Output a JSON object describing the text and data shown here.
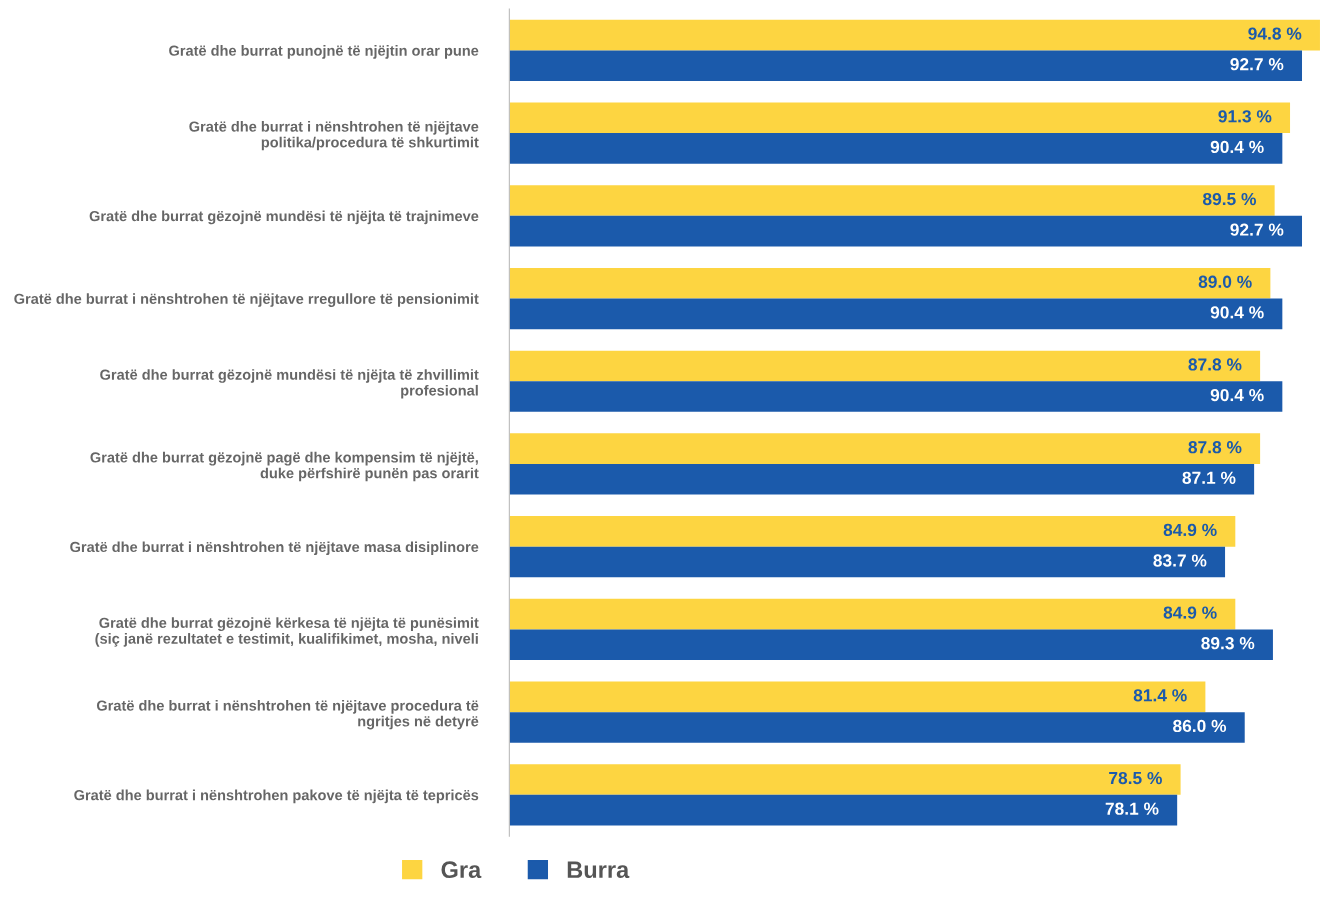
{
  "chart_data": {
    "type": "bar",
    "orientation": "horizontal",
    "categories": [
      "Gratë dhe burrat punojnë të njëjtin orar pune",
      "Gratë dhe burrat i nënshtrohen të njëjtave\npolitika/procedura të shkurtimit",
      "Gratë dhe burrat gëzojnë mundësi të njëjta të trajnimeve",
      "Gratë dhe burrat i nënshtrohen të njëjtave rregullore të pensionimit",
      "Gratë dhe burrat gëzojnë mundësi të njëjta të zhvillimit\nprofesional",
      "Gratë dhe burrat gëzojnë pagë dhe kompensim të njëjtë,\nduke përfshirë punën pas orarit",
      "Gratë dhe burrat i nënshtrohen të njëjtave masa disiplinore",
      "Gratë dhe burrat gëzojnë kërkesa të njëjta të punësimit\n(siç janë rezultatet e testimit, kualifikimet, mosha, niveli",
      "Gratë dhe burrat i nënshtrohen të njëjtave procedura të\nngritjes në detyrë",
      "Gratë dhe burrat i nënshtrohen pakove të njëjta të tepricës"
    ],
    "series": [
      {
        "name": "Gra",
        "color": "#fdd541",
        "values": [
          94.8,
          91.3,
          89.5,
          89.0,
          87.8,
          87.8,
          84.9,
          84.9,
          81.4,
          78.5
        ],
        "value_labels": [
          "94.8 %",
          "91.3 %",
          "89.5 %",
          "89.0 %",
          "87.8 %",
          "87.8 %",
          "84.9 %",
          "84.9 %",
          "81.4 %",
          "78.5 %"
        ]
      },
      {
        "name": "Burra",
        "color": "#1b5aab",
        "values": [
          92.7,
          90.4,
          92.7,
          90.4,
          90.4,
          87.1,
          83.7,
          89.3,
          86.0,
          78.1
        ],
        "value_labels": [
          "92.7 %",
          "90.4 %",
          "92.7 %",
          "90.4 %",
          "90.4 %",
          "87.1 %",
          "83.7 %",
          "89.3 %",
          "86.0 %",
          "78.1 %"
        ]
      }
    ],
    "xlim": [
      0,
      95
    ],
    "tick_labels": false,
    "grid": false,
    "legend": "bottom"
  }
}
